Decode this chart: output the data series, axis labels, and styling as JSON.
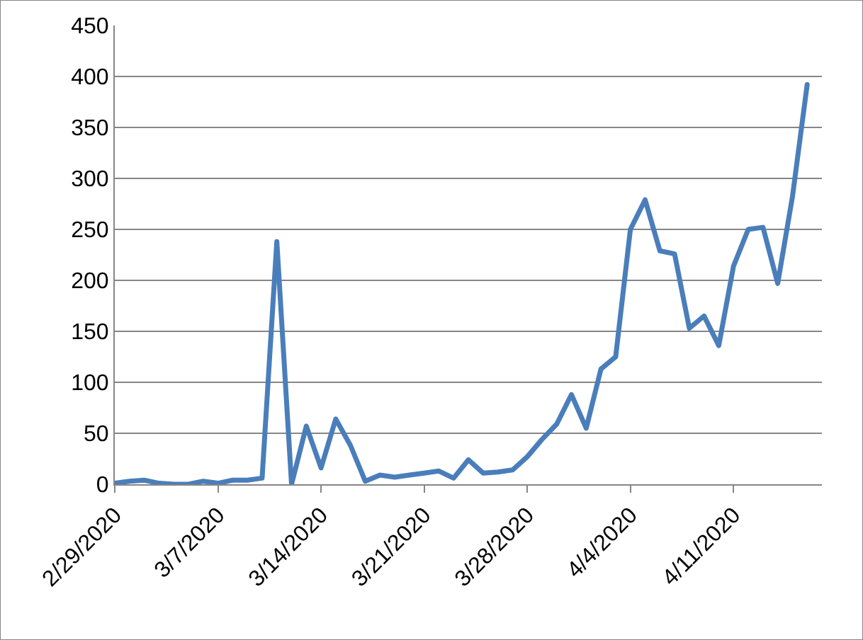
{
  "chart_data": {
    "type": "line",
    "x": [
      "2020-02-29",
      "2020-03-01",
      "2020-03-02",
      "2020-03-03",
      "2020-03-04",
      "2020-03-05",
      "2020-03-06",
      "2020-03-07",
      "2020-03-08",
      "2020-03-09",
      "2020-03-10",
      "2020-03-11",
      "2020-03-12",
      "2020-03-13",
      "2020-03-14",
      "2020-03-15",
      "2020-03-16",
      "2020-03-17",
      "2020-03-18",
      "2020-03-19",
      "2020-03-20",
      "2020-03-21",
      "2020-03-22",
      "2020-03-23",
      "2020-03-24",
      "2020-03-25",
      "2020-03-26",
      "2020-03-27",
      "2020-03-28",
      "2020-03-29",
      "2020-03-30",
      "2020-03-31",
      "2020-04-01",
      "2020-04-02",
      "2020-04-03",
      "2020-04-04",
      "2020-04-05",
      "2020-04-06",
      "2020-04-07",
      "2020-04-08",
      "2020-04-09",
      "2020-04-10",
      "2020-04-11",
      "2020-04-12",
      "2020-04-13",
      "2020-04-14",
      "2020-04-15",
      "2020-04-16"
    ],
    "series": [
      {
        "color": "#4a7ebb",
        "values": [
          1,
          3,
          4,
          1,
          0,
          0,
          3,
          1,
          4,
          4,
          6,
          238,
          0,
          57,
          16,
          64,
          38,
          3,
          9,
          7,
          9,
          11,
          13,
          6,
          24,
          11,
          12,
          14,
          27,
          44,
          59,
          88,
          55,
          113,
          125,
          250,
          279,
          229,
          226,
          153,
          165,
          136,
          214,
          250,
          252,
          197,
          282,
          392
        ]
      }
    ],
    "xlim": [
      "2020-02-29",
      "2020-04-17"
    ],
    "xticks": [
      {
        "value": "2020-02-29",
        "label": "2/29/2020"
      },
      {
        "value": "2020-03-07",
        "label": "3/7/2020"
      },
      {
        "value": "2020-03-14",
        "label": "3/14/2020"
      },
      {
        "value": "2020-03-21",
        "label": "3/21/2020"
      },
      {
        "value": "2020-03-28",
        "label": "3/28/2020"
      },
      {
        "value": "2020-04-04",
        "label": "4/4/2020"
      },
      {
        "value": "2020-04-11",
        "label": "4/11/2020"
      }
    ],
    "ylim": [
      0,
      450
    ],
    "yticks": [
      0,
      50,
      100,
      150,
      200,
      250,
      300,
      350,
      400,
      450
    ],
    "grid": "y",
    "marker": "none",
    "line_style": "solid"
  }
}
